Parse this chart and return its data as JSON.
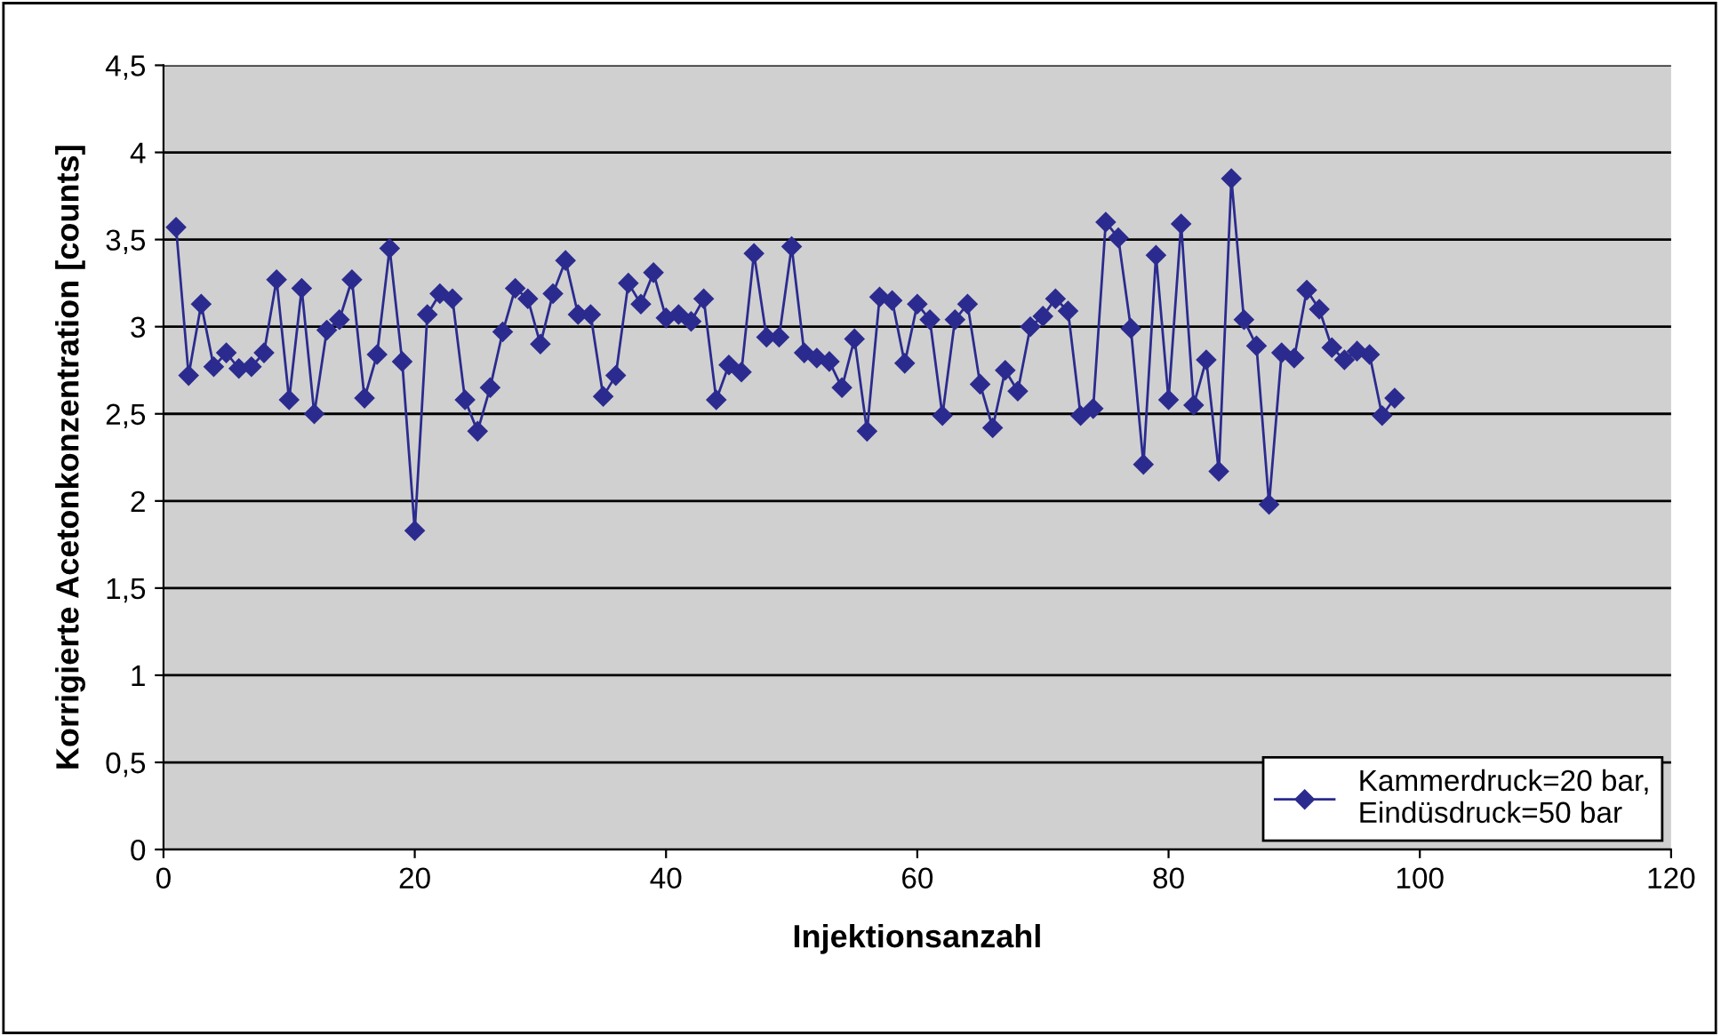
{
  "chart_data": {
    "type": "line",
    "xlabel": "Injektionsanzahl",
    "ylabel": "Korrigierte Acetonkonzentration [counts]",
    "x": [
      1,
      2,
      3,
      4,
      5,
      6,
      7,
      8,
      9,
      10,
      11,
      12,
      13,
      14,
      15,
      16,
      17,
      18,
      19,
      20,
      21,
      22,
      23,
      24,
      25,
      26,
      27,
      28,
      29,
      30,
      31,
      32,
      33,
      34,
      35,
      36,
      37,
      38,
      39,
      40,
      41,
      42,
      43,
      44,
      45,
      46,
      47,
      48,
      49,
      50,
      51,
      52,
      53,
      54,
      55,
      56,
      57,
      58,
      59,
      60,
      61,
      62,
      63,
      64,
      65,
      66,
      67,
      68,
      69,
      70,
      71,
      72,
      73,
      74,
      75,
      76,
      77,
      78,
      79,
      80,
      81,
      82,
      83,
      84,
      85,
      86,
      87,
      88,
      89,
      90,
      91,
      92,
      93,
      94,
      95,
      96,
      97,
      98
    ],
    "series": [
      {
        "name": "Kammerdruck=20 bar,\nEindüsdruck=50 bar",
        "color": "#2b2b8f",
        "values": [
          3.57,
          2.72,
          3.13,
          2.77,
          2.85,
          2.76,
          2.77,
          2.85,
          3.27,
          2.58,
          3.22,
          2.5,
          2.98,
          3.04,
          3.27,
          2.59,
          2.84,
          3.45,
          2.8,
          1.83,
          3.07,
          3.19,
          3.16,
          2.58,
          2.4,
          2.65,
          2.97,
          3.22,
          3.16,
          2.9,
          3.19,
          3.38,
          3.07,
          3.07,
          2.6,
          2.72,
          3.25,
          3.13,
          3.31,
          3.05,
          3.07,
          3.03,
          3.16,
          2.58,
          2.78,
          2.74,
          3.42,
          2.94,
          2.94,
          3.46,
          2.85,
          2.82,
          2.8,
          2.65,
          2.93,
          2.4,
          3.17,
          3.15,
          2.79,
          3.13,
          3.04,
          2.49,
          3.04,
          3.13,
          2.67,
          2.42,
          2.75,
          2.63,
          3.0,
          3.06,
          3.16,
          3.09,
          2.49,
          2.53,
          3.6,
          3.51,
          2.99,
          2.21,
          3.41,
          2.58,
          3.59,
          2.55,
          2.81,
          2.17,
          3.85,
          3.04,
          2.89,
          1.98,
          2.85,
          2.82,
          3.21,
          3.1,
          2.88,
          2.81,
          2.86,
          2.84,
          2.49,
          2.59
        ]
      }
    ],
    "xlim": [
      0,
      120
    ],
    "xticks": [
      0,
      20,
      40,
      60,
      80,
      100,
      120
    ],
    "ylim": [
      0,
      4.5
    ],
    "yticks": [
      0,
      {
        "value": 0.5,
        "label": "0,5"
      },
      1,
      {
        "value": 1.5,
        "label": "1,5"
      },
      2,
      {
        "value": 2.5,
        "label": "2,5"
      },
      3,
      {
        "value": 3.5,
        "label": "3,5"
      },
      4,
      {
        "value": 4.5,
        "label": "4,5"
      }
    ],
    "grid": "y",
    "legend": "bottom right",
    "marker": "diamond",
    "line_style": "solid"
  }
}
